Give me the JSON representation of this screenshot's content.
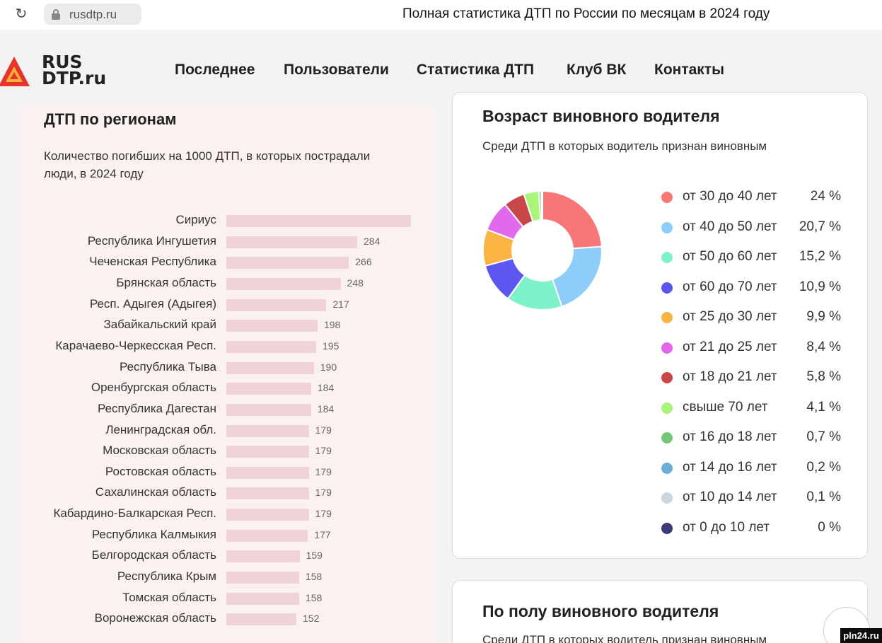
{
  "browser": {
    "url": "rusdtp.ru",
    "tab_title": "Полная статистика ДТП по России по месяцам в 2024 году"
  },
  "site": {
    "logo_line1": "RUS",
    "logo_line2": "DTP.ru",
    "nav": [
      "Последнее",
      "Пользователи",
      "Статистика ДТП",
      "Клуб ВК",
      "Контакты"
    ]
  },
  "regions_card": {
    "title": "ДТП по регионам",
    "subtitle": "Количество погибших на 1000 ДТП, в которых пострадали люди, в 2024 году",
    "rows": [
      {
        "label": "Сириус",
        "value": null,
        "display": ""
      },
      {
        "label": "Республика Ингушетия",
        "value": 284,
        "display": "284"
      },
      {
        "label": "Чеченская Республика",
        "value": 266,
        "display": "266"
      },
      {
        "label": "Брянская область",
        "value": 248,
        "display": "248"
      },
      {
        "label": "Респ. Адыгея (Адыгея)",
        "value": 217,
        "display": "217"
      },
      {
        "label": "Забайкальский край",
        "value": 198,
        "display": "198"
      },
      {
        "label": "Карачаево-Черкесская Респ.",
        "value": 195,
        "display": "195"
      },
      {
        "label": "Республика Тыва",
        "value": 190,
        "display": "190"
      },
      {
        "label": "Оренбургская область",
        "value": 184,
        "display": "184"
      },
      {
        "label": "Республика Дагестан",
        "value": 184,
        "display": "184"
      },
      {
        "label": "Ленинградская обл.",
        "value": 179,
        "display": "179"
      },
      {
        "label": "Московская область",
        "value": 179,
        "display": "179"
      },
      {
        "label": "Ростовская область",
        "value": 179,
        "display": "179"
      },
      {
        "label": "Сахалинская область",
        "value": 179,
        "display": "179"
      },
      {
        "label": "Кабардино-Балкарская Респ.",
        "value": 179,
        "display": "179"
      },
      {
        "label": "Республика Калмыкия",
        "value": 177,
        "display": "177"
      },
      {
        "label": "Белгородская область",
        "value": 159,
        "display": "159"
      },
      {
        "label": "Республика Крым",
        "value": 158,
        "display": "158"
      },
      {
        "label": "Томская область",
        "value": 158,
        "display": "158"
      },
      {
        "label": "Воронежская область",
        "value": 152,
        "display": "152"
      }
    ],
    "first_bar_relative": 1.41
  },
  "age_card": {
    "title": "Возраст виновного водителя",
    "subtitle": "Среди ДТП в которых водитель признан виновным",
    "legend": [
      {
        "label": "от 30 до 40 лет",
        "pct": "24 %",
        "value": 24,
        "color": "#f87676"
      },
      {
        "label": "от 40 до 50 лет",
        "pct": "20,7 %",
        "value": 20.7,
        "color": "#8ecdfa"
      },
      {
        "label": "от 50 до 60 лет",
        "pct": "15,2 %",
        "value": 15.2,
        "color": "#7ff2cc"
      },
      {
        "label": "от 60 до 70 лет",
        "pct": "10,9 %",
        "value": 10.9,
        "color": "#5b57f0"
      },
      {
        "label": "от 25 до 30 лет",
        "pct": "9,9 %",
        "value": 9.9,
        "color": "#f9b443"
      },
      {
        "label": "от 21 до 25 лет",
        "pct": "8,4 %",
        "value": 8.4,
        "color": "#e069ec"
      },
      {
        "label": "от 18 до 21 лет",
        "pct": "5,8 %",
        "value": 5.8,
        "color": "#c94649"
      },
      {
        "label": "свыше 70 лет",
        "pct": "4,1 %",
        "value": 4.1,
        "color": "#a9f57a"
      },
      {
        "label": "от 16 до 18 лет",
        "pct": "0,7 %",
        "value": 0.7,
        "color": "#74c87a"
      },
      {
        "label": "от 14 до 16 лет",
        "pct": "0,2 %",
        "value": 0.2,
        "color": "#6aaed6"
      },
      {
        "label": "от 10 до 14 лет",
        "pct": "0,1 %",
        "value": 0.1,
        "color": "#cfd6dc"
      },
      {
        "label": "от 0 до 10 лет",
        "pct": "0 %",
        "value": 0,
        "color": "#3d3a78"
      }
    ]
  },
  "gender_card": {
    "title": "По полу виновного водителя",
    "subtitle": "Среди ДТП в которых водитель признан виновным"
  },
  "watermark": "pln24.ru",
  "chart_data": [
    {
      "type": "bar",
      "title": "ДТП по регионам",
      "categories": [
        "Сириус",
        "Республика Ингушетия",
        "Чеченская Республика",
        "Брянская область",
        "Респ. Адыгея (Адыгея)",
        "Забайкальский край",
        "Карачаево-Черкесская Респ.",
        "Республика Тыва",
        "Оренбургская область",
        "Республика Дагестан",
        "Ленинградская обл.",
        "Московская область",
        "Ростовская область",
        "Сахалинская область",
        "Кабардино-Балкарская Респ.",
        "Республика Калмыкия",
        "Белгородская область",
        "Республика Крым",
        "Томская область",
        "Воронежская область"
      ],
      "values": [
        400,
        284,
        266,
        248,
        217,
        198,
        195,
        190,
        184,
        184,
        179,
        179,
        179,
        179,
        179,
        177,
        159,
        158,
        158,
        152
      ]
    },
    {
      "type": "pie",
      "title": "Возраст виновного водителя",
      "categories": [
        "от 30 до 40 лет",
        "от 40 до 50 лет",
        "от 50 до 60 лет",
        "от 60 до 70 лет",
        "от 25 до 30 лет",
        "от 21 до 25 лет",
        "от 18 до 21 лет",
        "свыше 70 лет",
        "от 16 до 18 лет",
        "от 14 до 16 лет",
        "от 10 до 14 лет",
        "от 0 до 10 лет"
      ],
      "values": [
        24,
        20.7,
        15.2,
        10.9,
        9.9,
        8.4,
        5.8,
        4.1,
        0.7,
        0.2,
        0.1,
        0
      ]
    }
  ]
}
